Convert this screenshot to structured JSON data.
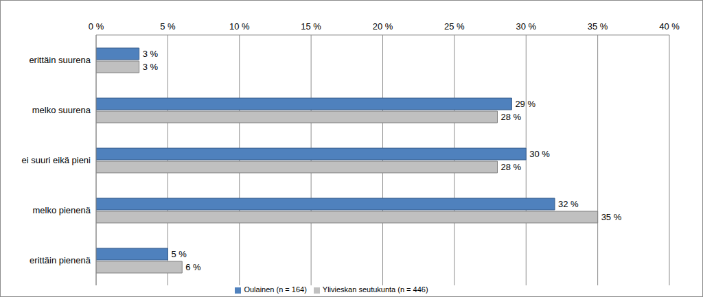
{
  "chart_data": {
    "type": "bar",
    "orientation": "horizontal",
    "categories": [
      "erittäin suurena",
      "melko suurena",
      "ei suuri eikä pieni",
      "melko pienenä",
      "erittäin pienenä"
    ],
    "series": [
      {
        "name": "Oulainen  (n = 164)",
        "color": "#4f81bd",
        "values": [
          3,
          29,
          30,
          32,
          5
        ],
        "value_labels": [
          "3 %",
          "29 %",
          "30 %",
          "32 %",
          "5 %"
        ]
      },
      {
        "name": "Ylivieskan seutukunta  (n = 446)",
        "color": "#c0c0c0",
        "values": [
          3,
          28,
          28,
          35,
          6
        ],
        "value_labels": [
          "3 %",
          "28 %",
          "28 %",
          "35 %",
          "6 %"
        ]
      }
    ],
    "xlim": [
      0,
      40
    ],
    "xticks": [
      {
        "value": 0,
        "label": "0 %"
      },
      {
        "value": 5,
        "label": "5 %"
      },
      {
        "value": 10,
        "label": "10 %"
      },
      {
        "value": 15,
        "label": "15 %"
      },
      {
        "value": 20,
        "label": "20 %"
      },
      {
        "value": 25,
        "label": "25 %"
      },
      {
        "value": 30,
        "label": "30 %"
      },
      {
        "value": 35,
        "label": "35 %"
      },
      {
        "value": 40,
        "label": "40 %"
      }
    ],
    "grid": true,
    "data_labels": true,
    "legend": "bottom"
  }
}
